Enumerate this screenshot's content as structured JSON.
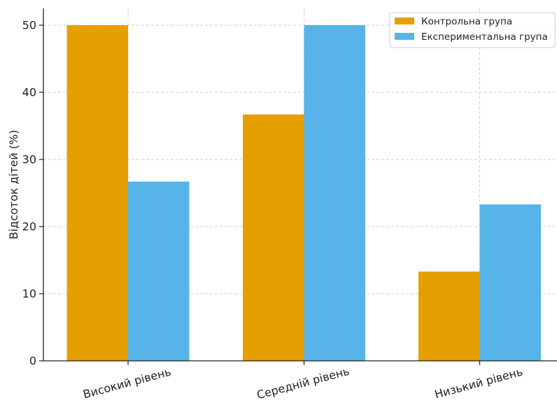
{
  "chart_data": {
    "type": "bar",
    "categories": [
      "Високий рівень",
      "Середній рівень",
      "Низький рівень"
    ],
    "series": [
      {
        "name": "Контрольна група",
        "values": [
          50,
          36.7,
          13.3
        ],
        "color": "#E69F00"
      },
      {
        "name": "Експериментальна група",
        "values": [
          26.7,
          50,
          23.3
        ],
        "color": "#56B4E9"
      }
    ],
    "title": "",
    "xlabel": "",
    "ylabel": "Відсоток дітей (%)",
    "ylim": [
      0,
      52.5
    ],
    "yticks": [
      0,
      10,
      20,
      30,
      40,
      50
    ],
    "grid": true,
    "legend_position": "top-right"
  }
}
